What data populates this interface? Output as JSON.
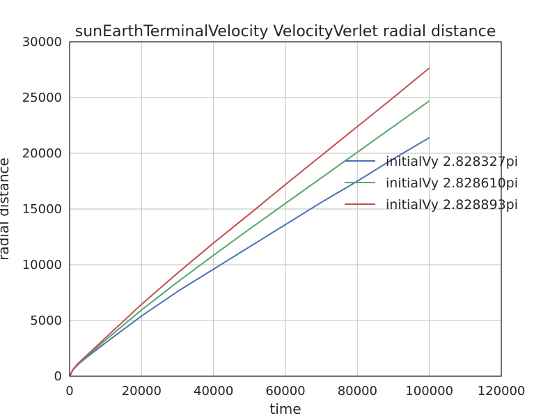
{
  "chart_data": {
    "type": "line",
    "title": "sunEarthTerminalVelocity VelocityVerlet radial distance",
    "xlabel": "time",
    "ylabel": "radial distance",
    "xlim": [
      0,
      120000
    ],
    "ylim": [
      0,
      30000
    ],
    "xticks": [
      0,
      20000,
      40000,
      60000,
      80000,
      100000,
      120000
    ],
    "yticks": [
      0,
      5000,
      10000,
      15000,
      20000,
      25000,
      30000
    ],
    "grid": true,
    "legend_position": "center-right",
    "series": [
      {
        "name": "initialVy 2.828327pi",
        "color": "#4c72b0",
        "x": [
          0,
          1000,
          2500,
          5000,
          10000,
          20000,
          30000,
          40000,
          50000,
          60000,
          70000,
          80000,
          90000,
          100000
        ],
        "y": [
          0,
          600,
          1100,
          1750,
          3000,
          5400,
          7600,
          9600,
          11600,
          13600,
          15600,
          17500,
          19500,
          21400
        ]
      },
      {
        "name": "initialVy 2.828610pi",
        "color": "#55a868",
        "x": [
          0,
          1000,
          2500,
          5000,
          10000,
          20000,
          30000,
          40000,
          50000,
          60000,
          70000,
          80000,
          90000,
          100000
        ],
        "y": [
          0,
          620,
          1150,
          1850,
          3250,
          5950,
          8450,
          10850,
          13200,
          15500,
          17800,
          20100,
          22400,
          24700
        ]
      },
      {
        "name": "initialVy 2.828893pi",
        "color": "#c44e52",
        "x": [
          0,
          1000,
          2500,
          5000,
          10000,
          20000,
          30000,
          40000,
          50000,
          60000,
          70000,
          80000,
          90000,
          100000
        ],
        "y": [
          0,
          640,
          1200,
          1950,
          3450,
          6450,
          9250,
          11950,
          14550,
          17200,
          19800,
          22400,
          25000,
          27650
        ]
      }
    ]
  }
}
